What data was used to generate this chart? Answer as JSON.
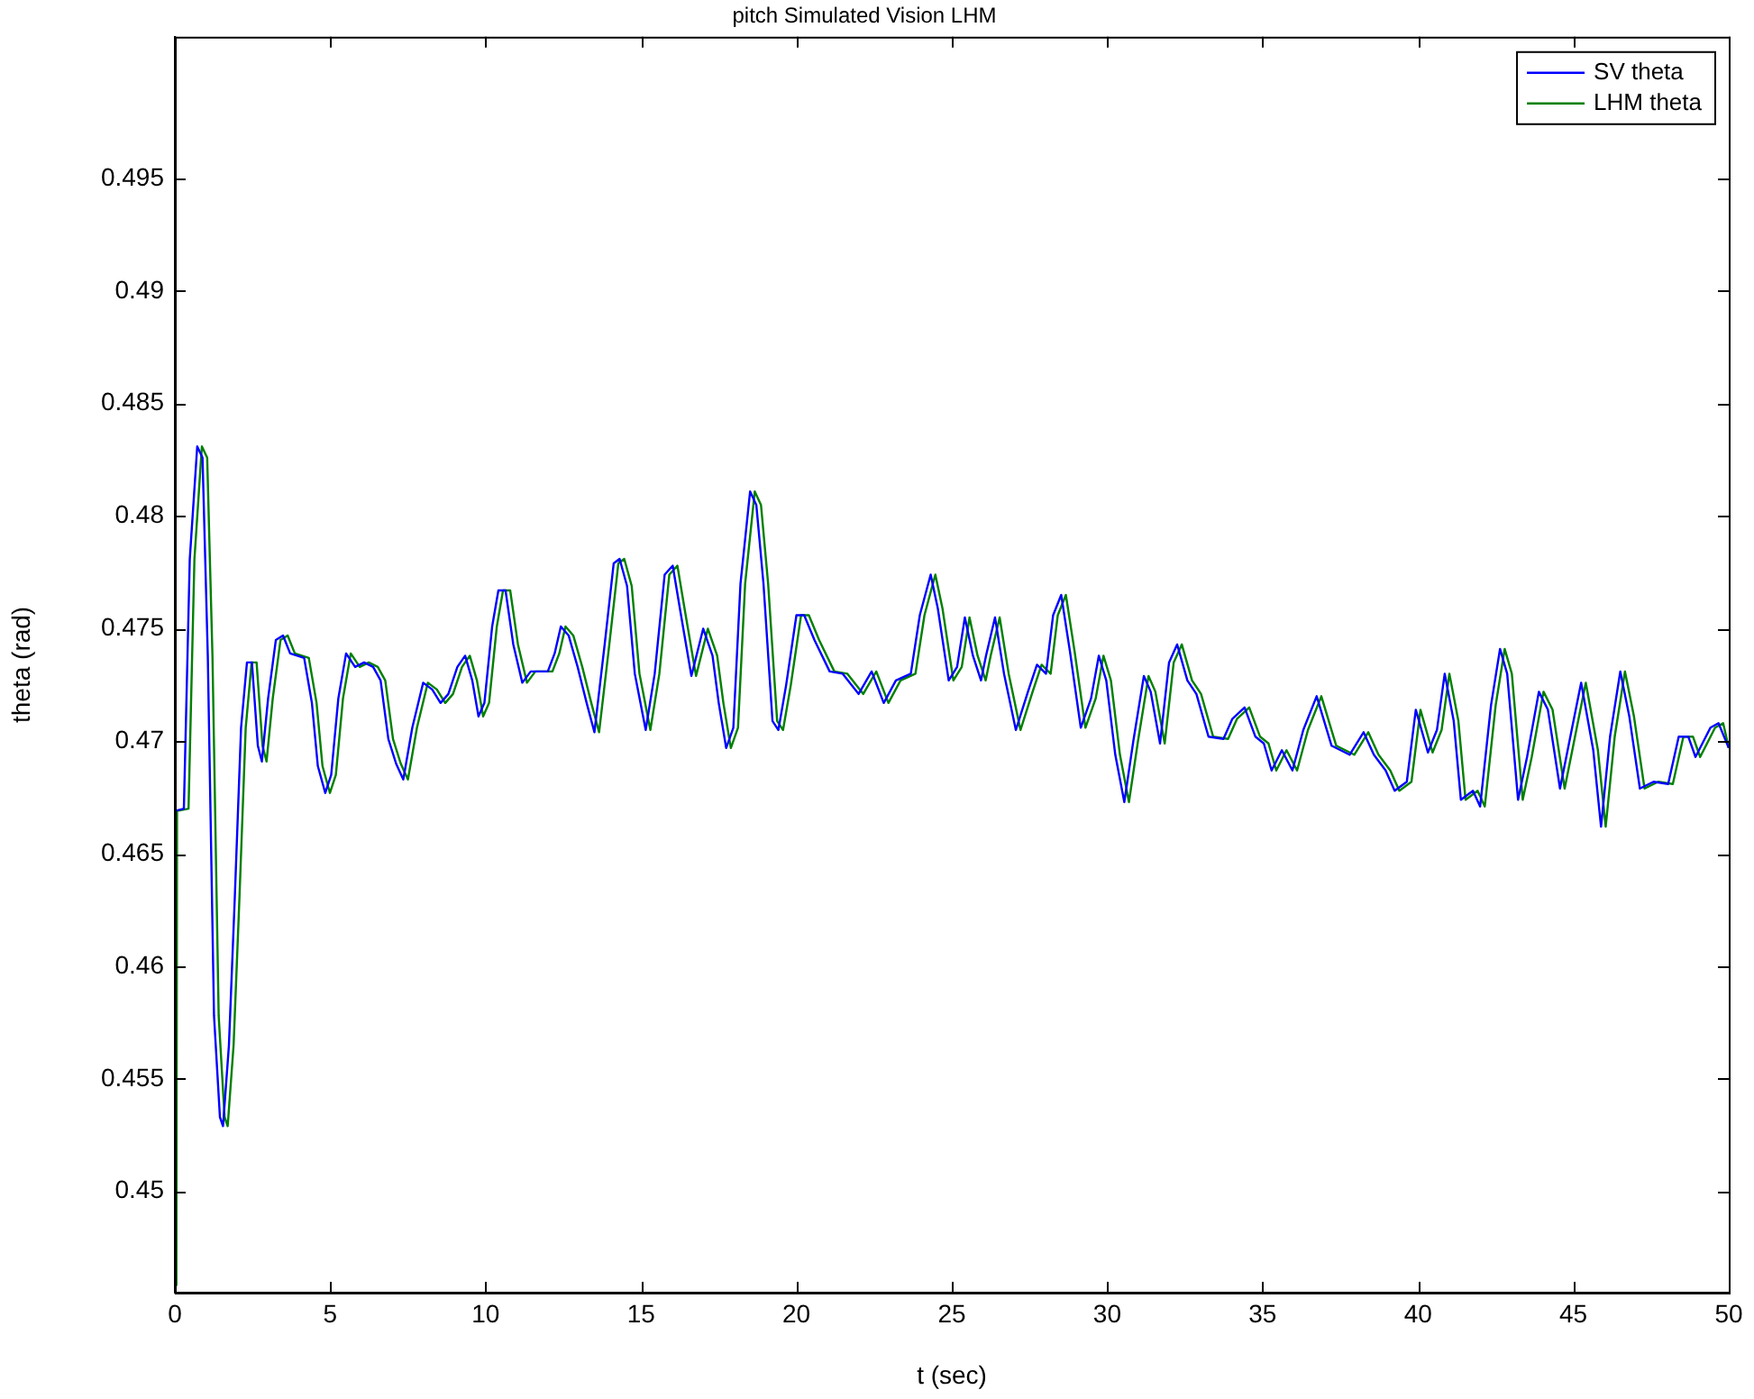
{
  "chart_data": {
    "type": "line",
    "title": "pitch Simulated Vision LHM",
    "xlabel": "t (sec)",
    "ylabel": "theta (rad)",
    "xlim": [
      0,
      50
    ],
    "xticks": [
      0,
      5,
      10,
      15,
      20,
      25,
      30,
      35,
      40,
      45,
      50
    ],
    "ylim": [
      0.4455,
      0.5013
    ],
    "yticks": [
      0.45,
      0.455,
      0.46,
      0.465,
      0.47,
      0.475,
      0.48,
      0.485,
      0.49,
      0.495
    ],
    "grid": false,
    "legend": "top right",
    "marker": "none",
    "line_style": "solid",
    "series": [
      {
        "name": "SV theta",
        "color": "#0000ff",
        "x": [
          0,
          0.29,
          0.48,
          0.72,
          0.89,
          1.06,
          1.26,
          1.45,
          1.55,
          1.74,
          1.93,
          2.13,
          2.32,
          2.48,
          2.67,
          2.8,
          3.0,
          3.25,
          3.48,
          3.71,
          4.16,
          4.41,
          4.6,
          4.84,
          5.03,
          5.26,
          5.51,
          5.8,
          6.09,
          6.38,
          6.62,
          6.87,
          7.12,
          7.35,
          7.64,
          7.99,
          8.28,
          8.55,
          8.8,
          9.09,
          9.34,
          9.57,
          9.77,
          9.96,
          10.21,
          10.41,
          10.64,
          10.89,
          11.18,
          11.45,
          12.0,
          12.22,
          12.42,
          12.67,
          12.96,
          13.25,
          13.5,
          13.83,
          14.12,
          14.31,
          14.55,
          14.8,
          15.15,
          15.44,
          15.76,
          16.02,
          16.25,
          16.62,
          17.0,
          17.3,
          17.5,
          17.74,
          17.97,
          18.2,
          18.51,
          18.71,
          18.94,
          19.23,
          19.42,
          19.67,
          20.0,
          20.25,
          20.58,
          21.07,
          21.49,
          22.0,
          22.42,
          22.81,
          23.2,
          23.68,
          23.97,
          24.32,
          24.55,
          24.9,
          25.17,
          25.42,
          25.68,
          25.94,
          26.1,
          26.39,
          26.68,
          27.06,
          27.45,
          27.74,
          28.03,
          28.26,
          28.52,
          28.8,
          29.15,
          29.48,
          29.73,
          29.97,
          30.26,
          30.55,
          30.84,
          31.18,
          31.4,
          31.7,
          31.99,
          32.25,
          32.58,
          32.87,
          33.26,
          33.74,
          34.03,
          34.42,
          34.77,
          35.04,
          35.29,
          35.62,
          35.96,
          36.31,
          36.74,
          37.22,
          37.8,
          38.25,
          38.58,
          38.96,
          39.25,
          39.64,
          39.93,
          40.32,
          40.61,
          40.86,
          41.15,
          41.38,
          41.77,
          42.0,
          42.35,
          42.64,
          42.87,
          43.22,
          43.51,
          43.89,
          44.18,
          44.57,
          44.96,
          45.25,
          45.64,
          45.89,
          46.18,
          46.51,
          46.8,
          47.14,
          47.58,
          48.05,
          48.39,
          48.7,
          48.93,
          49.41,
          49.67,
          50.0
        ],
        "values": [
          0.4669,
          0.467,
          0.4781,
          0.4831,
          0.4826,
          0.4738,
          0.4578,
          0.4533,
          0.4529,
          0.4565,
          0.4631,
          0.4706,
          0.4735,
          0.4735,
          0.4698,
          0.4691,
          0.4719,
          0.4745,
          0.4747,
          0.4739,
          0.4737,
          0.4717,
          0.4689,
          0.4677,
          0.4685,
          0.4719,
          0.4739,
          0.4733,
          0.4735,
          0.4733,
          0.4727,
          0.4701,
          0.469,
          0.4683,
          0.4706,
          0.4726,
          0.4723,
          0.4717,
          0.4721,
          0.4733,
          0.4738,
          0.4727,
          0.4711,
          0.4717,
          0.4751,
          0.4767,
          0.4767,
          0.4743,
          0.4726,
          0.4731,
          0.4731,
          0.4739,
          0.4751,
          0.4747,
          0.4733,
          0.4717,
          0.4704,
          0.4743,
          0.4779,
          0.4781,
          0.4769,
          0.473,
          0.4705,
          0.473,
          0.4774,
          0.4778,
          0.4759,
          0.4729,
          0.475,
          0.4738,
          0.4717,
          0.4697,
          0.4706,
          0.477,
          0.4811,
          0.4805,
          0.477,
          0.4709,
          0.4705,
          0.4725,
          0.4756,
          0.4756,
          0.4745,
          0.4731,
          0.473,
          0.4721,
          0.4731,
          0.4717,
          0.4727,
          0.473,
          0.4756,
          0.4774,
          0.4759,
          0.4727,
          0.4733,
          0.4755,
          0.4738,
          0.4727,
          0.4738,
          0.4755,
          0.473,
          0.4705,
          0.4722,
          0.4734,
          0.473,
          0.4756,
          0.4765,
          0.474,
          0.4706,
          0.4719,
          0.4738,
          0.4727,
          0.4694,
          0.4673,
          0.47,
          0.4729,
          0.4722,
          0.4699,
          0.4735,
          0.4743,
          0.4727,
          0.4721,
          0.4702,
          0.4701,
          0.471,
          0.4715,
          0.4702,
          0.4699,
          0.4687,
          0.4696,
          0.4687,
          0.4705,
          0.472,
          0.4698,
          0.4694,
          0.4704,
          0.4694,
          0.4687,
          0.4678,
          0.4682,
          0.4714,
          0.4695,
          0.4705,
          0.473,
          0.4709,
          0.4674,
          0.4678,
          0.4671,
          0.4716,
          0.4741,
          0.473,
          0.4674,
          0.4693,
          0.4722,
          0.4714,
          0.4679,
          0.4706,
          0.4726,
          0.4696,
          0.4662,
          0.4702,
          0.4731,
          0.4711,
          0.4679,
          0.4682,
          0.4681,
          0.4702,
          0.4702,
          0.4693,
          0.4706,
          0.4708,
          0.4697
        ]
      },
      {
        "name": "LHM theta",
        "color": "#008000",
        "x": [
          0.05,
          0.07,
          0.44,
          0.63,
          0.87,
          1.04,
          1.21,
          1.41,
          1.6,
          1.7,
          1.89,
          2.08,
          2.28,
          2.47,
          2.63,
          2.82,
          2.95,
          3.15,
          3.4,
          3.63,
          3.86,
          4.31,
          4.56,
          4.75,
          4.99,
          5.18,
          5.41,
          5.66,
          5.95,
          6.24,
          6.53,
          6.77,
          7.02,
          7.27,
          7.5,
          7.79,
          8.14,
          8.43,
          8.7,
          8.95,
          9.24,
          9.49,
          9.72,
          9.92,
          10.11,
          10.36,
          10.56,
          10.79,
          11.04,
          11.33,
          11.6,
          12.15,
          12.37,
          12.57,
          12.82,
          13.11,
          13.4,
          13.65,
          13.98,
          14.27,
          14.46,
          14.7,
          14.95,
          15.3,
          15.59,
          15.91,
          16.17,
          16.4,
          16.77,
          17.15,
          17.45,
          17.65,
          17.89,
          18.12,
          18.35,
          18.66,
          18.86,
          19.09,
          19.38,
          19.57,
          19.82,
          20.15,
          20.4,
          20.73,
          21.22,
          21.64,
          22.15,
          22.57,
          22.96,
          23.35,
          23.83,
          24.12,
          24.47,
          24.7,
          25.05,
          25.32,
          25.57,
          25.83,
          26.09,
          26.25,
          26.54,
          26.83,
          27.21,
          27.6,
          27.89,
          28.18,
          28.41,
          28.67,
          28.95,
          29.3,
          29.63,
          29.88,
          30.12,
          30.41,
          30.7,
          30.99,
          31.33,
          31.55,
          31.85,
          32.14,
          32.4,
          32.73,
          33.02,
          33.41,
          33.89,
          34.18,
          34.57,
          34.92,
          35.19,
          35.44,
          35.77,
          36.11,
          36.46,
          36.89,
          37.37,
          37.95,
          38.4,
          38.73,
          39.11,
          39.4,
          39.79,
          40.08,
          40.47,
          40.76,
          41.01,
          41.3,
          41.53,
          41.92,
          42.15,
          42.5,
          42.79,
          43.02,
          43.37,
          43.66,
          44.04,
          44.33,
          44.72,
          45.11,
          45.4,
          45.79,
          46.04,
          46.33,
          46.66,
          46.95,
          47.29,
          47.73,
          48.2,
          48.54,
          48.85,
          49.08,
          49.56,
          49.82,
          50.0
        ],
        "values": [
          0.4458,
          0.4669,
          0.467,
          0.4781,
          0.4831,
          0.4826,
          0.4738,
          0.4578,
          0.4533,
          0.4529,
          0.4565,
          0.4631,
          0.4706,
          0.4735,
          0.4735,
          0.4698,
          0.4691,
          0.4719,
          0.4745,
          0.4747,
          0.4739,
          0.4737,
          0.4717,
          0.4689,
          0.4677,
          0.4685,
          0.4719,
          0.4739,
          0.4733,
          0.4735,
          0.4733,
          0.4727,
          0.4701,
          0.469,
          0.4683,
          0.4706,
          0.4726,
          0.4723,
          0.4717,
          0.4721,
          0.4733,
          0.4738,
          0.4727,
          0.4711,
          0.4717,
          0.4751,
          0.4767,
          0.4767,
          0.4743,
          0.4726,
          0.4731,
          0.4731,
          0.4739,
          0.4751,
          0.4747,
          0.4733,
          0.4717,
          0.4704,
          0.4743,
          0.4779,
          0.4781,
          0.4769,
          0.473,
          0.4705,
          0.473,
          0.4774,
          0.4778,
          0.4759,
          0.4729,
          0.475,
          0.4738,
          0.4717,
          0.4697,
          0.4706,
          0.477,
          0.4811,
          0.4805,
          0.477,
          0.4709,
          0.4705,
          0.4725,
          0.4756,
          0.4756,
          0.4745,
          0.4731,
          0.473,
          0.4721,
          0.4731,
          0.4717,
          0.4727,
          0.473,
          0.4756,
          0.4774,
          0.4759,
          0.4727,
          0.4733,
          0.4755,
          0.4738,
          0.4727,
          0.4738,
          0.4755,
          0.473,
          0.4705,
          0.4722,
          0.4734,
          0.473,
          0.4756,
          0.4765,
          0.474,
          0.4706,
          0.4719,
          0.4738,
          0.4727,
          0.4694,
          0.4673,
          0.47,
          0.4729,
          0.4722,
          0.4699,
          0.4735,
          0.4743,
          0.4727,
          0.4721,
          0.4702,
          0.4701,
          0.471,
          0.4715,
          0.4702,
          0.4699,
          0.4687,
          0.4696,
          0.4687,
          0.4705,
          0.472,
          0.4698,
          0.4694,
          0.4704,
          0.4694,
          0.4687,
          0.4678,
          0.4682,
          0.4714,
          0.4695,
          0.4705,
          0.473,
          0.4709,
          0.4674,
          0.4678,
          0.4671,
          0.4716,
          0.4741,
          0.473,
          0.4674,
          0.4693,
          0.4722,
          0.4714,
          0.4679,
          0.4706,
          0.4726,
          0.4696,
          0.4662,
          0.4702,
          0.4731,
          0.4711,
          0.4679,
          0.4682,
          0.4681,
          0.4702,
          0.4702,
          0.4693,
          0.4706,
          0.4708,
          0.4697
        ]
      }
    ]
  }
}
